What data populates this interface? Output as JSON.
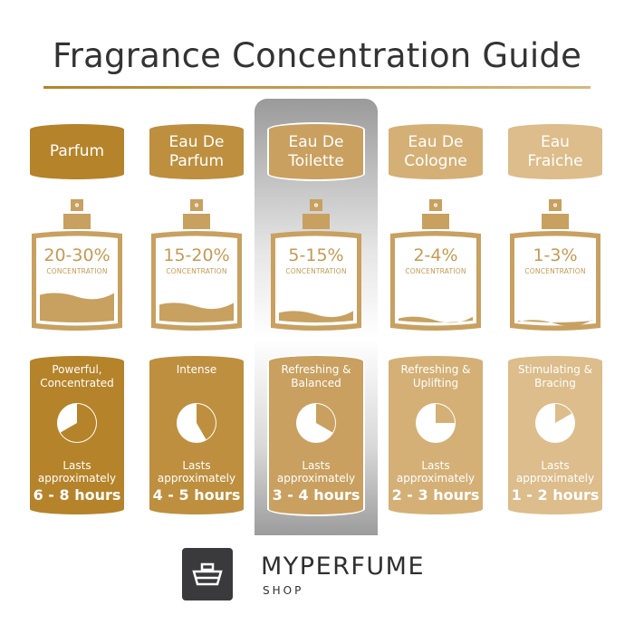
{
  "title": "Fragrance Concentration Guide",
  "highlighted_index": 2,
  "columns": [
    {
      "name_lines": [
        "Parfum"
      ],
      "concentration": "20-30%",
      "concentration_label": "CONCENTRATION",
      "fill_level": 0.36,
      "description": [
        "Powerful,",
        "Concentrated"
      ],
      "lasts_line1": "Lasts",
      "lasts_line2": "approximately",
      "hours": "6 - 8 hours",
      "clock_fraction": 0.6667,
      "color": "#b5832a"
    },
    {
      "name_lines": [
        "Eau De",
        "Parfum"
      ],
      "concentration": "15-20%",
      "concentration_label": "CONCENTRATION",
      "fill_level": 0.24,
      "description": [
        "Intense"
      ],
      "lasts_line1": "Lasts",
      "lasts_line2": "approximately",
      "hours": "4 - 5 hours",
      "clock_fraction": 0.4167,
      "color": "#bd8f3f"
    },
    {
      "name_lines": [
        "Eau De",
        "Toilette"
      ],
      "concentration": "5-15%",
      "concentration_label": "CONCENTRATION",
      "fill_level": 0.14,
      "description": [
        "Refreshing &",
        "Balanced"
      ],
      "lasts_line1": "Lasts",
      "lasts_line2": "approximately",
      "hours": "3 - 4 hours",
      "clock_fraction": 0.3333,
      "color": "#c9a060"
    },
    {
      "name_lines": [
        "Eau De",
        "Cologne"
      ],
      "concentration": "2-4%",
      "concentration_label": "CONCENTRATION",
      "fill_level": 0.07,
      "description": [
        "Refreshing &",
        "Uplifting"
      ],
      "lasts_line1": "Lasts",
      "lasts_line2": "approximately",
      "hours": "2 - 3 hours",
      "clock_fraction": 0.25,
      "color": "#d4b077"
    },
    {
      "name_lines": [
        "Eau",
        "Fraiche"
      ],
      "concentration": "1-3%",
      "concentration_label": "CONCENTRATION",
      "fill_level": 0.03,
      "description": [
        "Stimulating &",
        "Bracing"
      ],
      "lasts_line1": "Lasts",
      "lasts_line2": "approximately",
      "hours": "1 - 2 hours",
      "clock_fraction": 0.1667,
      "color": "#dcbd8b"
    }
  ],
  "bottle_color": "#c8a060",
  "brand": {
    "name": "MYPERFUME",
    "sub": "SHOP",
    "logo_color": "#3a3a3c"
  }
}
